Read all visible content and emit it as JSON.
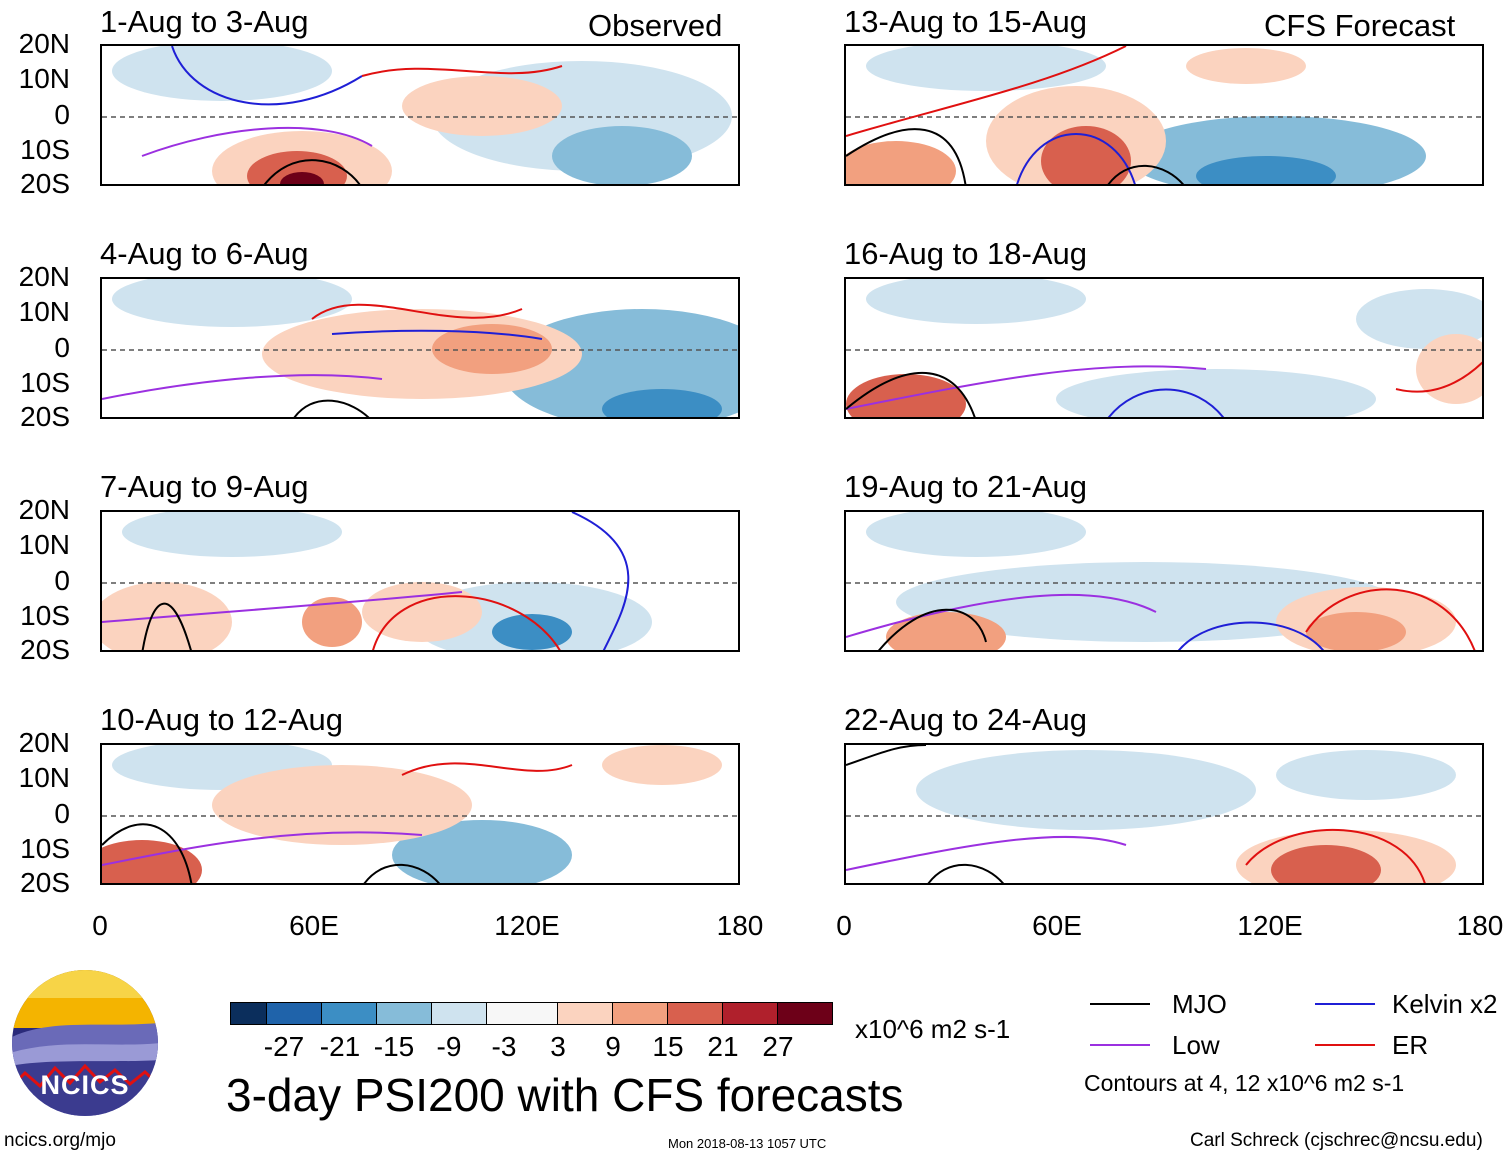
{
  "header": {
    "observed_label": "Observed",
    "forecast_label": "CFS Forecast"
  },
  "panels": [
    {
      "title": "1-Aug to 3-Aug",
      "kind": "observed"
    },
    {
      "title": "4-Aug to 6-Aug",
      "kind": "observed"
    },
    {
      "title": "7-Aug to 9-Aug",
      "kind": "observed"
    },
    {
      "title": "10-Aug to 12-Aug",
      "kind": "observed"
    },
    {
      "title": "13-Aug to 15-Aug",
      "kind": "forecast"
    },
    {
      "title": "16-Aug to 18-Aug",
      "kind": "forecast"
    },
    {
      "title": "19-Aug to 21-Aug",
      "kind": "forecast"
    },
    {
      "title": "22-Aug to 24-Aug",
      "kind": "forecast"
    }
  ],
  "axes": {
    "lat_labels": [
      "20N",
      "10N",
      "0",
      "10S",
      "20S"
    ],
    "lon_labels": [
      "0",
      "60E",
      "120E",
      "180"
    ]
  },
  "colorbar": {
    "ticks": [
      "-27",
      "-21",
      "-15",
      "-9",
      "-3",
      "3",
      "9",
      "15",
      "21",
      "27"
    ],
    "units": "x10^6 m2 s-1",
    "colors": [
      "#0b2e5c",
      "#1f63aa",
      "#3c8ec4",
      "#86bcd9",
      "#cfe3ef",
      "#f7f7f7",
      "#fbd3bf",
      "#f2a07f",
      "#d8604e",
      "#b0202c",
      "#6d0018"
    ]
  },
  "legend": {
    "mjo": "MJO",
    "kelvin": "Kelvin x2",
    "low": "Low",
    "er": "ER",
    "contours_note": "Contours at 4, 12 x10^6 m2 s-1",
    "line_colors": {
      "mjo": "#000000",
      "kelvin": "#1f1fd6",
      "low": "#9b30e0",
      "er": "#e01010"
    }
  },
  "title": "3-day PSI200 with CFS forecasts",
  "logo": {
    "text": "NCICS"
  },
  "footer": {
    "url": "ncics.org/mjo",
    "timestamp": "Mon 2018-08-13 1057 UTC",
    "credit": "Carl Schreck (cjschrec@ncsu.edu)"
  }
}
